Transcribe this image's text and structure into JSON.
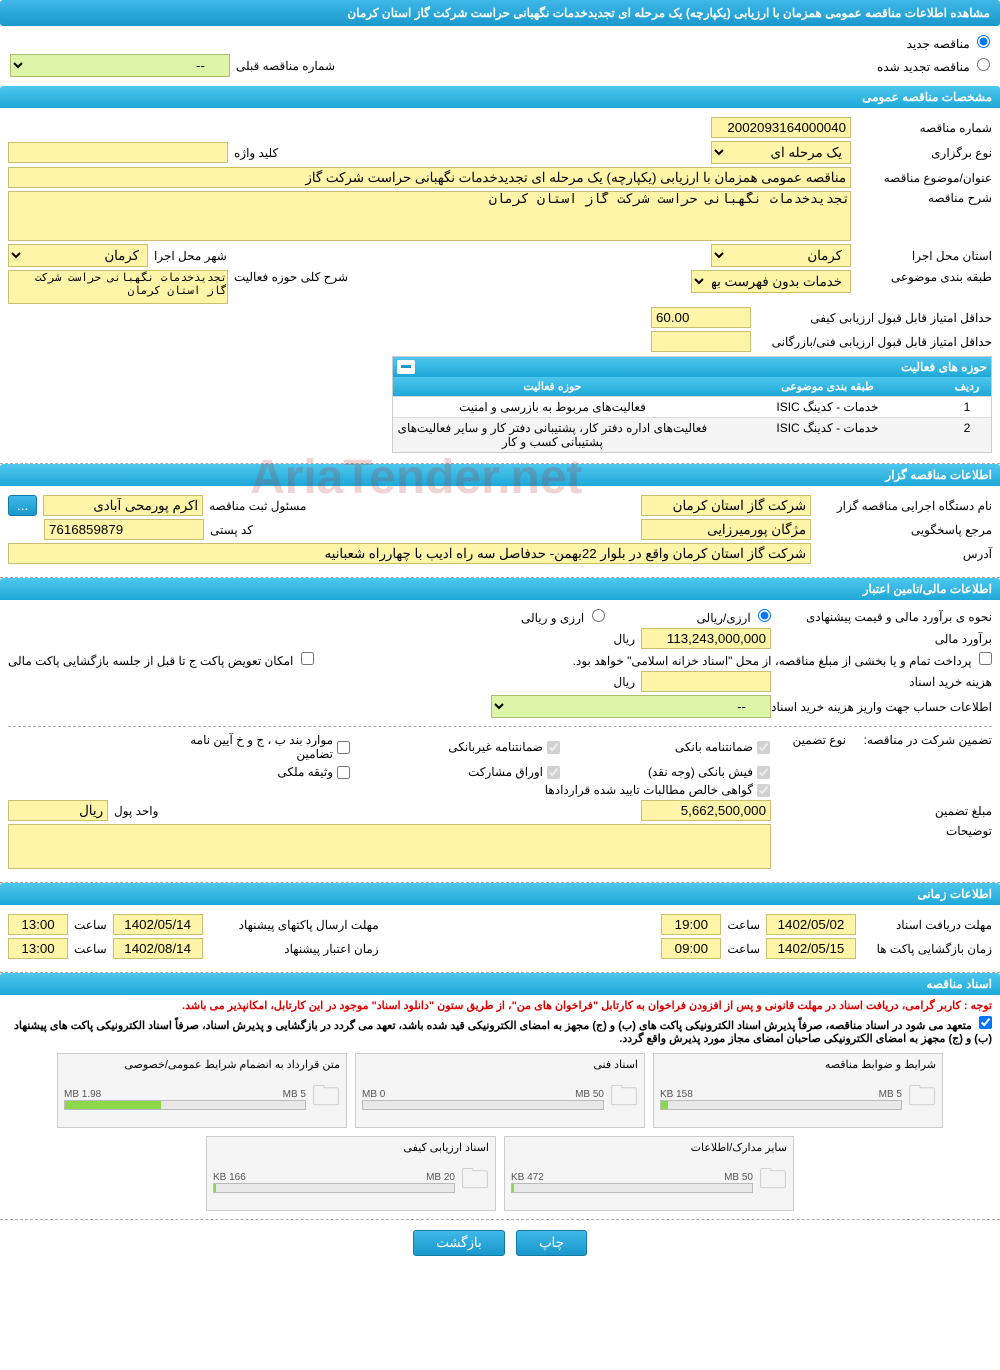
{
  "title": "مشاهده اطلاعات مناقصه عمومی همزمان با ارزیابی (یکپارچه) یک مرحله ای تجدیدخدمات نگهبانی حراست شرکت گاز استان کرمان",
  "radio": {
    "new": "مناقصه جدید",
    "renewed": "مناقصه تجدید شده"
  },
  "prev_label": "شماره مناقصه قبلی",
  "prev_placeholder": "--",
  "sections": {
    "general": "مشخصات مناقصه عمومی",
    "tenderer": "اطلاعات مناقصه گزار",
    "financial": "اطلاعات مالی/تامین اعتبار",
    "timing": "اطلاعات زمانی",
    "docs": "اسناد مناقصه"
  },
  "general": {
    "number_lbl": "شماره مناقصه",
    "number": "2002093164000040",
    "type_lbl": "نوع برگزاری",
    "type": "یک مرحله ای",
    "keyword_lbl": "کلید واژه",
    "keyword": "",
    "subject_lbl": "عنوان/موضوع مناقصه",
    "subject": "مناقصه عمومی همزمان با ارزیابی (یکپارچه) یک مرحله ای تجدیدخدمات نگهبانی حراست شرکت گاز",
    "desc_lbl": "شرح مناقصه",
    "desc": "تجدیدخدمات نگهبانی حراست شرکت گاز استان کرمان",
    "province_lbl": "استان محل اجرا",
    "province": "کرمان",
    "city_lbl": "شهر محل اجرا",
    "city": "کرمان",
    "cat_lbl": "طبقه بندی موضوعی",
    "cat": "خدمات بدون فهرست بها",
    "scope_lbl": "شرح کلی حوزه فعالیت",
    "scope": "تجدیدخدمات نگهبانی حراست شرکت گاز استان کرمان",
    "minq_lbl": "حداقل امتیاز قابل قبول ارزیابی کیفی",
    "minq": "60.00",
    "mint_lbl": "حداقل امتیاز قابل قبول ارزیابی فنی/بازرگانی",
    "mint": ""
  },
  "activity_table": {
    "title": "حوزه های فعالیت",
    "col_idx": "ردیف",
    "col_cat": "طبقه بندی موضوعی",
    "col_act": "حوزه فعالیت",
    "rows": [
      {
        "idx": "1",
        "cat": "خدمات - کدینگ ISIC",
        "act": "فعالیت‌های مربوط به بازرسی و امنیت"
      },
      {
        "idx": "2",
        "cat": "خدمات - کدینگ ISIC",
        "act": "فعالیت‌های  اداره دفتر کار، پشتیبانی دفتر کار و سایر فعالیت‌های پشتیبانی کسب و کار"
      }
    ]
  },
  "tenderer": {
    "exec_lbl": "نام دستگاه اجرایی مناقصه گزار",
    "exec": "شرکت گاز استان کرمان",
    "reg_lbl": "مسئول ثبت مناقصه",
    "reg": "اکرم پورمحی آبادی",
    "more_btn": "...",
    "resp_lbl": "مرجع پاسخگویی",
    "resp": "مژگان پورمیرزایی",
    "postal_lbl": "کد پستی",
    "postal": "7616859879",
    "addr_lbl": "آدرس",
    "addr": "شرکت گاز استان کرمان واقع در بلوار 22بهمن- حدفاصل سه راه ادیب با چهارراه شعبانیه"
  },
  "financial": {
    "method_lbl": "نحوه ی برآورد مالی و قیمت پیشنهادی",
    "opt_fx": "ارزی/ریالی",
    "opt_rial": "ارزی و ریالی",
    "est_lbl": "برآورد مالی",
    "est": "113,243,000,000",
    "unit": "ریال",
    "pay_note": "پرداخت تمام و یا بخشی از مبلغ مناقصه، از محل \"اسناد خزانه اسلامی\" خواهد بود.",
    "swap": "امکان تعویض پاکت ج تا قبل از جلسه بازگشایی پاکت مالی",
    "doc_cost_lbl": "هزینه خرید اسناد",
    "doc_cost": "",
    "doc_cost_unit": "ریال",
    "acct_lbl": "اطلاعات حساب جهت واریز هزینه خرید اسناد",
    "acct_placeholder": "--",
    "guar_title": "تضمین شرکت در مناقصه:",
    "guar_type_lbl": "نوع تضمین",
    "chk1": "ضمانتنامه بانکی",
    "chk2": "ضمانتنامه غیربانکی",
    "chk3": "موارد بند ب ، ج و خ آیین نامه تضامین",
    "chk4": "فیش بانکی (وجه نقد)",
    "chk5": "اوراق مشارکت",
    "chk6": "وثیقه ملکی",
    "chk7": "گواهی خالص مطالبات تایید شده قراردادها",
    "guar_amt_lbl": "مبلغ تضمین",
    "guar_amt": "5,662,500,000",
    "guar_unit_lbl": "واحد پول",
    "guar_unit": "ریال",
    "notes_lbl": "توضیحات",
    "notes": ""
  },
  "timing": {
    "doc_recv_lbl": "مهلت دریافت اسناد",
    "doc_recv_date": "1402/05/02",
    "time_lbl": "ساعت",
    "doc_recv_time": "19:00",
    "bid_send_lbl": "مهلت ارسال پاکتهای پیشنهاد",
    "bid_send_date": "1402/05/14",
    "bid_send_time": "13:00",
    "open_lbl": "زمان بازگشایی پاکت ها",
    "open_date": "1402/05/15",
    "open_time": "09:00",
    "valid_lbl": "زمان اعتبار پیشنهاد",
    "valid_date": "1402/08/14",
    "valid_time": "13:00"
  },
  "docs": {
    "note1": "توجه : کاربر گرامی، دریافت اسناد در مهلت قانونی و پس از افزودن فراخوان به کارتابل \"فراخوان های من\"، از طریق ستون \"دانلود اسناد\" موجود در این کارتابل، امکانپذیر می باشد.",
    "note2": "متعهد می شود در اسناد مناقصه، صرفاً پذیرش اسناد الکترونیکی پاکت های (ب) و (ج) مجهز به امضای الکترونیکی قید شده باشد، تعهد می گردد در بازگشایی و پذیرش اسناد، صرفاً اسناد الکترونیکی پاکت های پیشنهاد (ب) و (ج) مجهز به امضای الکترونیکی صاحبان امضای مجاز مورد پذیرش واقع گردد.",
    "files": [
      {
        "name": "شرایط و ضوابط مناقصه",
        "used": "158 KB",
        "max": "5 MB",
        "pct": 3
      },
      {
        "name": "اسناد فنی",
        "used": "0 MB",
        "max": "50 MB",
        "pct": 0
      },
      {
        "name": "متن قرارداد به انضمام شرایط عمومی/خصوصی",
        "used": "1.98 MB",
        "max": "5 MB",
        "pct": 40
      },
      {
        "name": "سایر مدارک/اطلاعات",
        "used": "472 KB",
        "max": "50 MB",
        "pct": 1
      },
      {
        "name": "اسناد ارزیابی کیفی",
        "used": "166 KB",
        "max": "20 MB",
        "pct": 1
      }
    ]
  },
  "footer": {
    "print": "چاپ",
    "back": "بازگشت"
  },
  "watermark": "AriaTender.net"
}
